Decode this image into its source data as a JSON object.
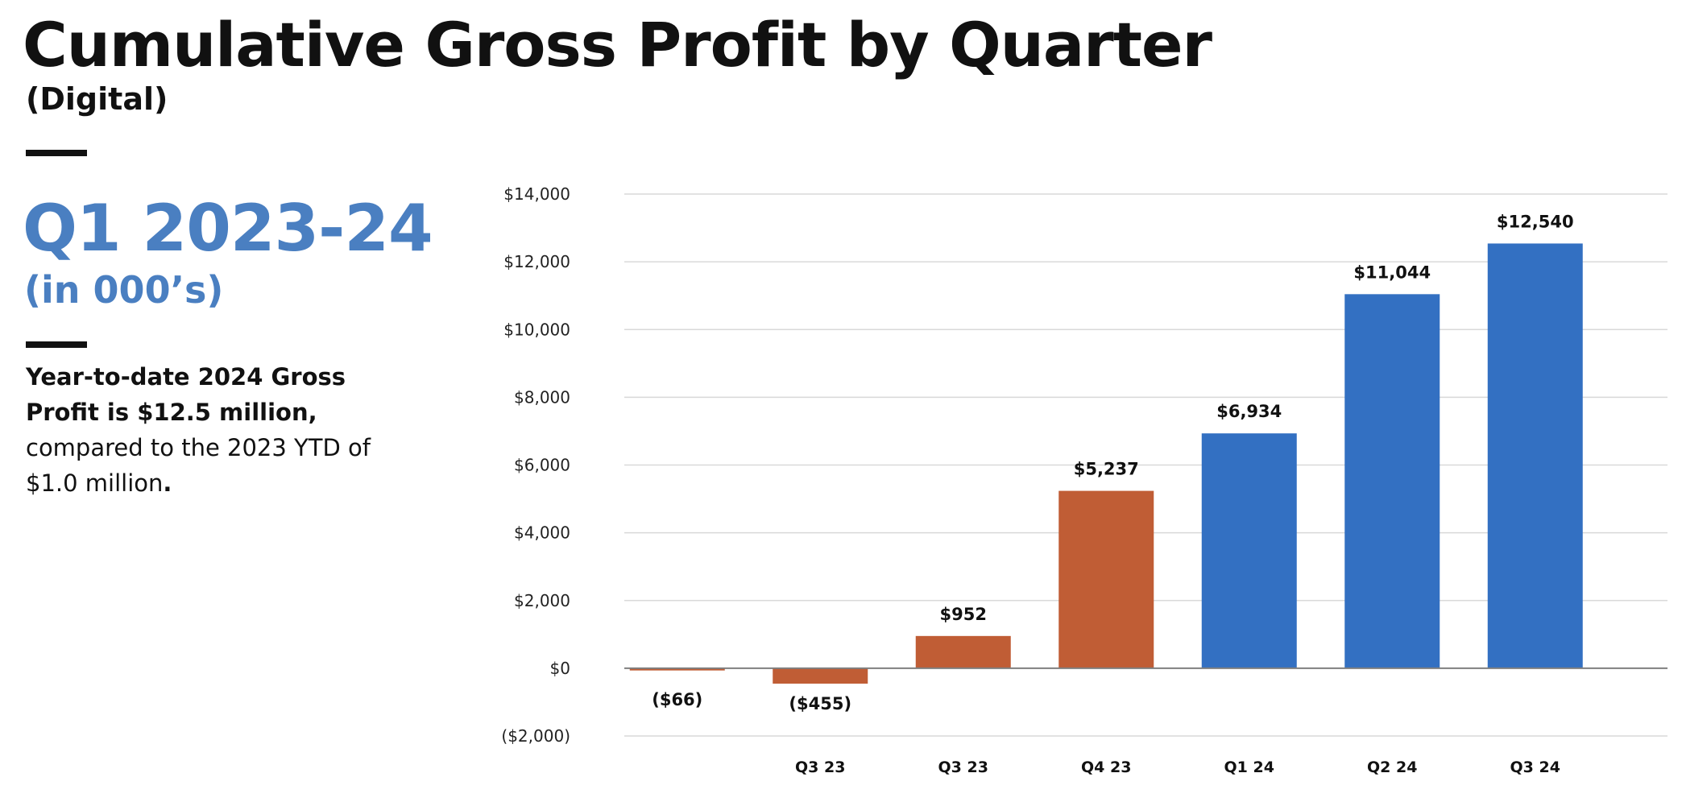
{
  "header": {
    "title": "Cumulative Gross Profit by Quarter",
    "subtitle": "(Digital)"
  },
  "sidebar": {
    "period": "Q1 2023-24",
    "units": "(in 000’s)",
    "note_bold": "Year-to-date 2024 Gross Profit is $12.5 million,",
    "note_regular": "compared to the 2023 YTD of $1.0 million",
    "note_end": "."
  },
  "colors": {
    "accent_blue": "#4a7fc1",
    "bar_orange": "#c05d35",
    "bar_blue": "#3370c2",
    "grid": "#d9d9d9",
    "axis": "#7f7f7f"
  },
  "chart_data": {
    "type": "bar",
    "title": "Cumulative Gross Profit by Quarter",
    "xlabel": "",
    "ylabel": "",
    "ylim": [
      -2000,
      14000
    ],
    "y_ticks": [
      14000,
      12000,
      10000,
      8000,
      6000,
      4000,
      2000,
      0,
      -2000
    ],
    "y_tick_labels": [
      "$14,000",
      "$12,000",
      "$10,000",
      "$8,000",
      "$6,000",
      "$4,000",
      "$2,000",
      "$0",
      "($2,000)"
    ],
    "grid": true,
    "legend": "none",
    "categories": [
      "",
      "Q3 23",
      "Q3 23",
      "Q4 23",
      "Q1 24",
      "Q2 24",
      "Q3 24"
    ],
    "values": [
      -66,
      -455,
      952,
      5237,
      6934,
      11044,
      12540
    ],
    "data_labels": [
      "($66)",
      "($455)",
      "$952",
      "$5,237",
      "$6,934",
      "$11,044",
      "$12,540"
    ],
    "bar_colors": [
      "#c05d35",
      "#c05d35",
      "#c05d35",
      "#c05d35",
      "#3370c2",
      "#3370c2",
      "#3370c2"
    ]
  }
}
